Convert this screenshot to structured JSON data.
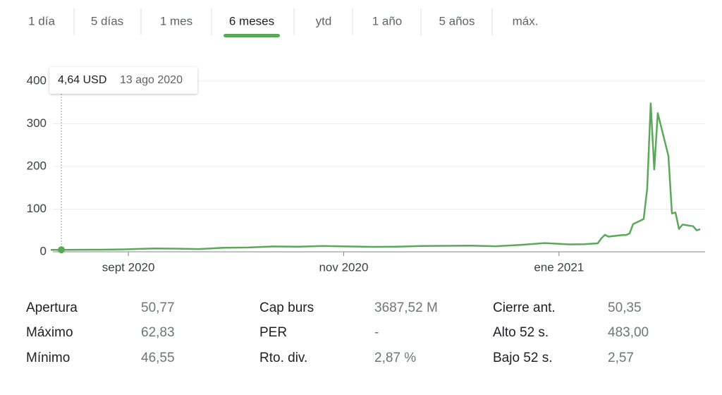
{
  "tabs": {
    "items": [
      "1 día",
      "5 días",
      "1 mes",
      "6 meses",
      "ytd",
      "1 año",
      "5 años",
      "máx."
    ],
    "selected": 3
  },
  "chart_data": {
    "type": "line",
    "color": "#5ba85b",
    "x": [
      "2020-08-10",
      "2020-08-13",
      "2020-08-17",
      "2020-08-24",
      "2020-08-31",
      "2020-09-08",
      "2020-09-14",
      "2020-09-21",
      "2020-09-28",
      "2020-10-05",
      "2020-10-12",
      "2020-10-19",
      "2020-10-26",
      "2020-11-02",
      "2020-11-09",
      "2020-11-16",
      "2020-11-23",
      "2020-11-30",
      "2020-12-07",
      "2020-12-14",
      "2020-12-21",
      "2020-12-28",
      "2021-01-04",
      "2021-01-08",
      "2021-01-12",
      "2021-01-13",
      "2021-01-14",
      "2021-01-15",
      "2021-01-19",
      "2021-01-20",
      "2021-01-21",
      "2021-01-22",
      "2021-01-25",
      "2021-01-26",
      "2021-01-27",
      "2021-01-28",
      "2021-01-29",
      "2021-02-01",
      "2021-02-02",
      "2021-02-03",
      "2021-02-04",
      "2021-02-05",
      "2021-02-08",
      "2021-02-09",
      "2021-02-10"
    ],
    "values": [
      4.4,
      4.64,
      4.8,
      5.0,
      5.8,
      7.7,
      7.4,
      6.5,
      9.5,
      10.0,
      12.5,
      12.0,
      13.5,
      12.5,
      11.5,
      12.0,
      13.5,
      14.0,
      14.5,
      13.0,
      16.0,
      20.5,
      17.3,
      17.7,
      19.9,
      31.4,
      39.9,
      35.5,
      39.4,
      39.1,
      43.0,
      65.0,
      76.8,
      148.0,
      348.0,
      193.0,
      325.0,
      225.0,
      90.0,
      92.0,
      53.5,
      63.8,
      60.0,
      50.3,
      53.0
    ],
    "xlim": [
      "2020-08-10",
      "2021-02-10"
    ],
    "xticks": [
      {
        "value": "2020-09-01",
        "label": "sept 2020"
      },
      {
        "value": "2020-11-01",
        "label": "nov 2020"
      },
      {
        "value": "2021-01-01",
        "label": "ene 2021"
      }
    ],
    "ylim": [
      0,
      400
    ],
    "yticks": [
      0,
      100,
      200,
      300,
      400
    ],
    "grid": true,
    "tooltip": {
      "x": "2020-08-13",
      "value": 4.64,
      "label": "4,64 USD",
      "date": "13 ago 2020"
    }
  },
  "stats": {
    "rows": [
      [
        [
          "Apertura",
          "50,77"
        ],
        [
          "Cap burs",
          "3687,52 M"
        ],
        [
          "Cierre ant.",
          "50,35"
        ]
      ],
      [
        [
          "Máximo",
          "62,83"
        ],
        [
          "PER",
          "-"
        ],
        [
          "Alto 52 s.",
          "483,00"
        ]
      ],
      [
        [
          "Mínimo",
          "46,55"
        ],
        [
          "Rto. div.",
          "2,87 %"
        ],
        [
          "Bajo 52 s.",
          "2,57"
        ]
      ]
    ]
  }
}
